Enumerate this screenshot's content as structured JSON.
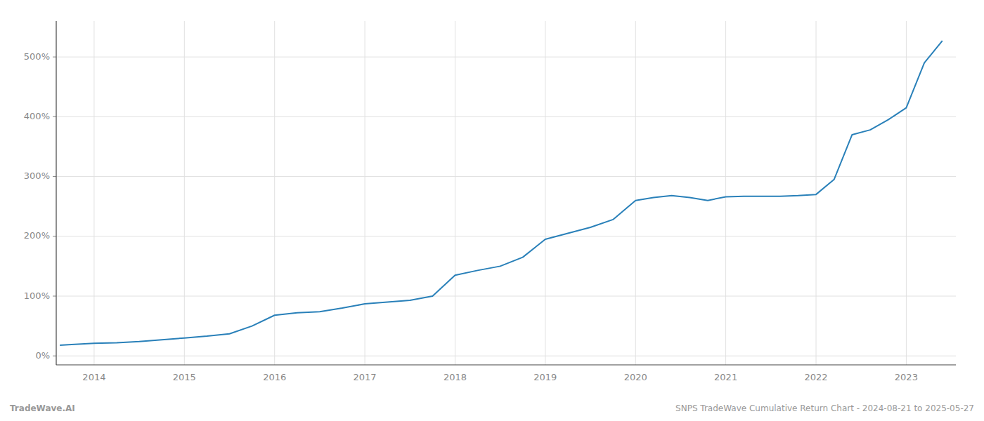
{
  "chart_data": {
    "type": "line",
    "x": [
      2013.62,
      2013.75,
      2014.0,
      2014.25,
      2014.5,
      2014.75,
      2015.0,
      2015.25,
      2015.5,
      2015.75,
      2016.0,
      2016.25,
      2016.5,
      2016.75,
      2017.0,
      2017.25,
      2017.5,
      2017.75,
      2018.0,
      2018.25,
      2018.5,
      2018.75,
      2019.0,
      2019.25,
      2019.5,
      2019.75,
      2020.0,
      2020.2,
      2020.4,
      2020.6,
      2020.8,
      2021.0,
      2021.2,
      2021.4,
      2021.6,
      2021.8,
      2022.0,
      2022.2,
      2022.4,
      2022.6,
      2022.8,
      2023.0,
      2023.2,
      2023.4
    ],
    "values": [
      18,
      19,
      21,
      22,
      24,
      27,
      30,
      33,
      37,
      50,
      68,
      72,
      74,
      80,
      87,
      90,
      93,
      100,
      135,
      143,
      150,
      165,
      195,
      205,
      215,
      228,
      260,
      265,
      268,
      265,
      260,
      266,
      267,
      267,
      267,
      268,
      270,
      295,
      370,
      378,
      395,
      415,
      490,
      527
    ],
    "color": "#2980b9",
    "xlim": [
      2013.58,
      2023.55
    ],
    "xticks": [
      2014,
      2015,
      2016,
      2017,
      2018,
      2019,
      2020,
      2021,
      2022,
      2023
    ],
    "ylim": [
      -15,
      560
    ],
    "yticks": [
      {
        "value": 0,
        "label": "0%"
      },
      {
        "value": 100,
        "label": "100%"
      },
      {
        "value": 200,
        "label": "200%"
      },
      {
        "value": 300,
        "label": "300%"
      },
      {
        "value": 400,
        "label": "400%"
      },
      {
        "value": 500,
        "label": "500%"
      }
    ],
    "grid": true,
    "annotations": [
      "TradeWave.AI",
      "SNPS TradeWave Cumulative Return Chart - 2024-08-21 to 2025-05-27"
    ]
  }
}
